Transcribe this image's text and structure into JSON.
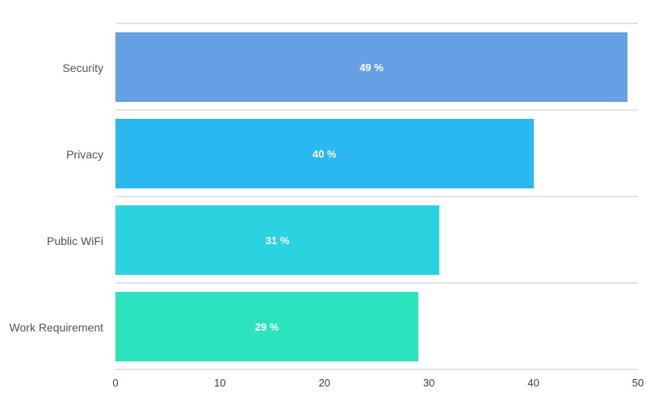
{
  "chart_data": {
    "type": "bar",
    "orientation": "horizontal",
    "title": "",
    "xlabel": "",
    "ylabel": "",
    "categories": [
      "Security",
      "Privacy",
      "Public WiFi",
      "Work Requirement"
    ],
    "values": [
      49,
      40,
      31,
      29
    ],
    "value_labels": [
      "49 %",
      "40 %",
      "31 %",
      "29 %"
    ],
    "bar_colors": [
      "#66A0E4",
      "#29B8F0",
      "#2BD2DF",
      "#2BE4BE"
    ],
    "x_ticks": [
      "0",
      "10",
      "20",
      "30",
      "40",
      "50"
    ],
    "x_tick_values": [
      0,
      10,
      20,
      30,
      40,
      50
    ],
    "xlim": [
      0,
      50
    ],
    "grid": true,
    "legend": "none",
    "value_label_color": "#FFFFFF",
    "gridline_color": "#E4E4E4",
    "category_label_color": "#545454",
    "tick_label_color": "#3D3D3D",
    "background_color": "#FFFFFF"
  }
}
